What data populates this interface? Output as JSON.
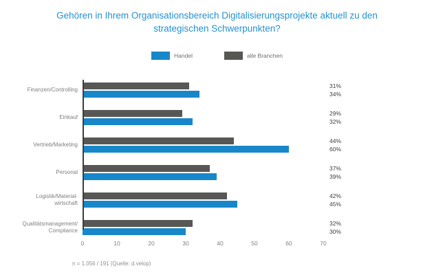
{
  "chart_data": {
    "type": "bar",
    "orientation": "horizontal",
    "title": "Gehören in Ihrem Organisationsbereich Digitalisierungsprojekte aktuell zu den strategischen Schwerpunkten?",
    "categories": [
      "Finanzen/Controlling",
      "Einkauf",
      "Vertrieb/Marketing",
      "Personal",
      "Logistik/Material-\nwirtschaft",
      "Qualitätsmanagement/\nCompliance"
    ],
    "series": [
      {
        "name": "alle Branchen",
        "color": "#575756",
        "values": [
          31,
          29,
          44,
          37,
          42,
          32
        ]
      },
      {
        "name": "Handel",
        "color": "#1887c9",
        "values": [
          34,
          32,
          60,
          39,
          45,
          30
        ]
      }
    ],
    "value_suffix": "%",
    "xlabel": "",
    "ylabel": "",
    "xlim": [
      0,
      70
    ],
    "x_ticks": [
      0,
      10,
      20,
      30,
      40,
      50,
      60,
      70
    ],
    "grid": false,
    "legend_position": "top"
  },
  "legend": {
    "items": [
      {
        "label": "Handel",
        "color": "#1887c9"
      },
      {
        "label": "alle Branchen",
        "color": "#575756"
      }
    ]
  },
  "footer": {
    "note": "n = 1.056 / 191 (Quelle: d.velop)"
  },
  "colors": {
    "title": "#2492cf",
    "axis_line": "#3c3c3c",
    "category_text": "#808080",
    "value_text": "#3d3d3d"
  }
}
